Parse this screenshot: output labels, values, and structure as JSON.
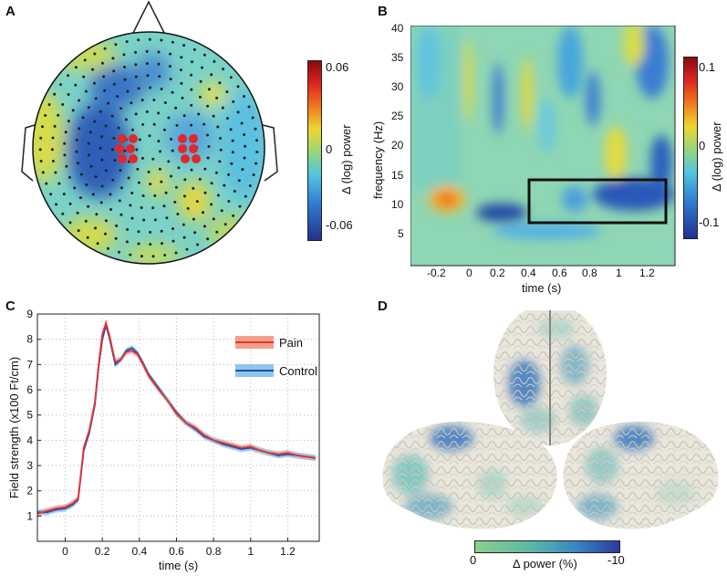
{
  "panels": {
    "a": {
      "letter": "A",
      "colorbar": {
        "label": "Δ (log) power",
        "ticks": [
          "0.06",
          "0",
          "-0.06"
        ]
      }
    },
    "b": {
      "letter": "B",
      "ylabel": "frequency (Hz)",
      "xlabel": "time (s)",
      "yticks": [
        "40",
        "35",
        "30",
        "25",
        "20",
        "15",
        "10",
        "5"
      ],
      "xticks": [
        "-0.2",
        "0",
        "0.2",
        "0.4",
        "0.6",
        "0.8",
        "1",
        "1.2"
      ],
      "colorbar": {
        "label": "Δ (log) power",
        "ticks": [
          "0.1",
          "0",
          "-0.1"
        ]
      }
    },
    "c": {
      "letter": "C"
    },
    "d": {
      "letter": "D",
      "colorbar": {
        "label": "Δ power (%)",
        "min_label": "0",
        "max_label": "-10"
      }
    }
  },
  "chart_data": {
    "type": "line",
    "xlabel": "time (s)",
    "ylabel": "Field strength (x100 Ft/cm)",
    "xlim": [
      -0.15,
      1.37
    ],
    "ylim": [
      0,
      9
    ],
    "xticks": [
      0,
      0.2,
      0.4,
      0.6,
      0.8,
      1,
      1.2
    ],
    "xtick_labels": [
      "0",
      "0.2",
      "0.4",
      "0.6",
      "0.8",
      "1",
      "1.2"
    ],
    "yticks": [
      1,
      2,
      3,
      4,
      5,
      6,
      7,
      8,
      9
    ],
    "ytick_labels": [
      "1",
      "2",
      "3",
      "4",
      "5",
      "6",
      "7",
      "8",
      "9"
    ],
    "grid": true,
    "legend": "top-right",
    "series": [
      {
        "name": "Pain",
        "color": "#e8322c",
        "band_color": "#f3a08a",
        "x": [
          -0.15,
          -0.1,
          -0.05,
          0,
          0.04,
          0.07,
          0.1,
          0.13,
          0.16,
          0.18,
          0.2,
          0.22,
          0.24,
          0.27,
          0.3,
          0.33,
          0.36,
          0.39,
          0.42,
          0.45,
          0.5,
          0.55,
          0.6,
          0.65,
          0.7,
          0.75,
          0.8,
          0.85,
          0.9,
          0.95,
          1,
          1.05,
          1.1,
          1.15,
          1.2,
          1.25,
          1.3,
          1.35
        ],
        "y": [
          1.1,
          1.2,
          1.3,
          1.35,
          1.5,
          1.7,
          3.7,
          4.4,
          5.5,
          7,
          8.2,
          8.65,
          8.1,
          7.1,
          7.2,
          7.5,
          7.55,
          7.4,
          7.0,
          6.55,
          6.05,
          5.6,
          5.05,
          4.7,
          4.5,
          4.2,
          4.0,
          3.9,
          3.8,
          3.7,
          3.75,
          3.6,
          3.5,
          3.45,
          3.5,
          3.4,
          3.35,
          3.3
        ]
      },
      {
        "name": "Control",
        "color": "#1f4fb8",
        "band_color": "#8fc6ea",
        "x": [
          -0.15,
          -0.1,
          -0.05,
          0,
          0.04,
          0.07,
          0.1,
          0.13,
          0.16,
          0.18,
          0.2,
          0.22,
          0.24,
          0.27,
          0.3,
          0.33,
          0.36,
          0.39,
          0.42,
          0.45,
          0.5,
          0.55,
          0.6,
          0.65,
          0.7,
          0.75,
          0.8,
          0.85,
          0.9,
          0.95,
          1,
          1.05,
          1.1,
          1.15,
          1.2,
          1.25,
          1.3,
          1.35
        ],
        "y": [
          1.15,
          1.15,
          1.25,
          1.3,
          1.45,
          1.65,
          3.6,
          4.3,
          5.4,
          6.9,
          8.0,
          8.55,
          8.0,
          7.0,
          7.2,
          7.55,
          7.65,
          7.45,
          7.05,
          6.6,
          6.1,
          5.6,
          5.1,
          4.7,
          4.45,
          4.15,
          4.0,
          3.85,
          3.75,
          3.65,
          3.7,
          3.6,
          3.5,
          3.4,
          3.45,
          3.4,
          3.35,
          3.3
        ]
      }
    ]
  },
  "colors": {
    "jet_dark_blue": "#23399b",
    "jet_cyan": "#5ec8e6",
    "jet_yellow": "#e8e23a",
    "jet_red": "#c8102e",
    "brain_blue": "#3a74c0",
    "brain_green": "#8ccf8c"
  }
}
